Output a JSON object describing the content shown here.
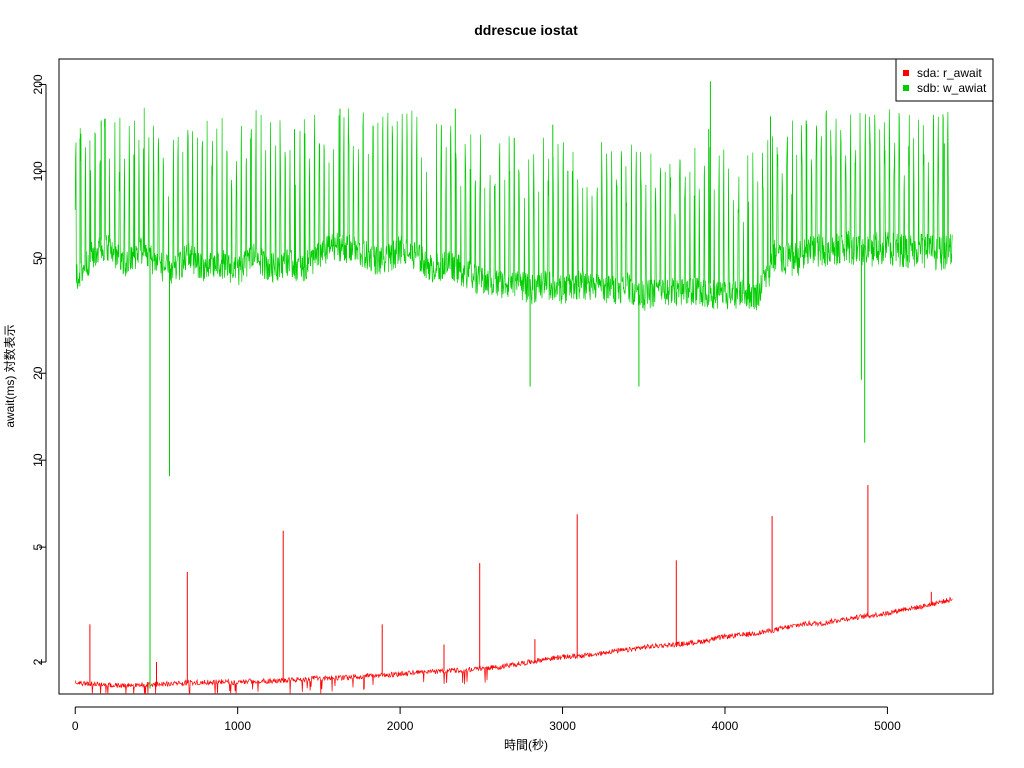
{
  "chart_data": {
    "type": "line",
    "title": "ddrescue iostat",
    "xlabel": "時間(秒)",
    "ylabel": "await(ms) 対数表示",
    "y_scale": "log",
    "xlim": [
      -100,
      5650
    ],
    "ylim": [
      1.55,
      245
    ],
    "x_ticks": [
      0,
      1000,
      2000,
      3000,
      4000,
      5000
    ],
    "x_tick_labels": [
      "0",
      "1000",
      "2000",
      "3000",
      "4000",
      "5000"
    ],
    "y_ticks": [
      2,
      5,
      10,
      20,
      50,
      100,
      200
    ],
    "y_tick_labels": [
      "2",
      "5",
      "10",
      "20",
      "50",
      "100",
      "200"
    ],
    "grid": false,
    "legend_position": "top-right",
    "series": [
      {
        "name": "sda: r_await",
        "color": "#ff0000",
        "x": [
          0,
          100,
          200,
          300,
          400,
          500,
          600,
          700,
          800,
          900,
          1000,
          1100,
          1200,
          1300,
          1400,
          1500,
          1600,
          1700,
          1800,
          1900,
          2000,
          2100,
          2200,
          2300,
          2400,
          2500,
          2600,
          2700,
          2800,
          2900,
          3000,
          3100,
          3200,
          3300,
          3400,
          3500,
          3600,
          3700,
          3800,
          3900,
          4000,
          4100,
          4200,
          4300,
          4400,
          4500,
          4600,
          4700,
          4800,
          4900,
          5000,
          5100,
          5200,
          5300,
          5400
        ],
        "y": [
          1.7,
          1.68,
          1.66,
          1.66,
          1.67,
          1.68,
          1.68,
          1.7,
          1.7,
          1.71,
          1.7,
          1.72,
          1.72,
          1.73,
          1.74,
          1.76,
          1.76,
          1.77,
          1.79,
          1.8,
          1.82,
          1.84,
          1.85,
          1.87,
          1.88,
          1.9,
          1.92,
          1.96,
          2.0,
          2.05,
          2.08,
          2.1,
          2.12,
          2.18,
          2.2,
          2.25,
          2.28,
          2.3,
          2.33,
          2.38,
          2.45,
          2.48,
          2.52,
          2.58,
          2.65,
          2.72,
          2.72,
          2.8,
          2.85,
          2.9,
          2.95,
          3.05,
          3.1,
          3.2,
          3.3
        ]
      },
      {
        "name": "sdb: w_awiat",
        "color": "#00cd00",
        "x": [
          0,
          100,
          200,
          300,
          400,
          500,
          600,
          700,
          800,
          900,
          1000,
          1100,
          1200,
          1300,
          1400,
          1500,
          1600,
          1700,
          1800,
          1900,
          2000,
          2100,
          2200,
          2300,
          2400,
          2500,
          2600,
          2700,
          2800,
          2900,
          3000,
          3100,
          3200,
          3300,
          3400,
          3500,
          3600,
          3700,
          3800,
          3900,
          4000,
          4100,
          4200,
          4300,
          4400,
          4500,
          4600,
          4700,
          4800,
          4900,
          5000,
          5100,
          5200,
          5300,
          5400
        ],
        "y": [
          45,
          55,
          60,
          50,
          58,
          52,
          48,
          55,
          50,
          52,
          48,
          55,
          50,
          52,
          50,
          55,
          60,
          58,
          55,
          52,
          58,
          55,
          50,
          52,
          48,
          45,
          44,
          45,
          42,
          44,
          42,
          44,
          43,
          42,
          43,
          40,
          42,
          41,
          42,
          41,
          40,
          41,
          40,
          52,
          50,
          52,
          55,
          54,
          56,
          55,
          55,
          54,
          55,
          53,
          54
        ]
      }
    ],
    "spikes": [
      {
        "series": "sda: r_await",
        "x": [
          90,
          500,
          690,
          1280,
          1890,
          2270,
          2490,
          2830,
          3090,
          3700,
          4290,
          4880,
          5270
        ],
        "y": [
          2.7,
          2.0,
          4.1,
          5.7,
          2.7,
          2.3,
          4.4,
          2.4,
          6.5,
          4.5,
          6.4,
          8.2,
          3.5
        ]
      },
      {
        "series": "sdb: w_awiat",
        "x": [
          30,
          160,
          460,
          580,
          1080,
          1350,
          1630,
          2340,
          2800,
          2940,
          3470,
          3900,
          3910,
          4280,
          4500,
          4840,
          4860,
          5350
        ],
        "y": [
          130,
          150,
          1.62,
          8.8,
          130,
          140,
          165,
          165,
          18,
          145,
          18,
          140,
          205,
          155,
          150,
          19,
          11.5,
          125
        ]
      }
    ]
  }
}
